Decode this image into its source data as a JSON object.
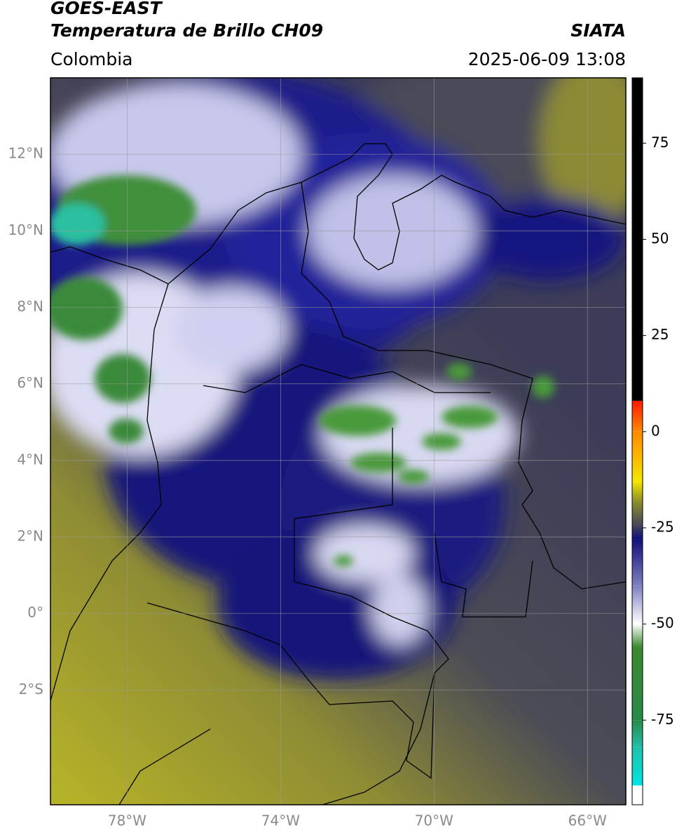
{
  "header": {
    "title": "GOES-EAST",
    "subtitle": "Temperatura de Brillo CH09",
    "source": "SIATA",
    "region": "Colombia",
    "datetime": "2025-06-09 13:08"
  },
  "map": {
    "xlim": [
      -80,
      -65
    ],
    "ylim": [
      -5,
      14
    ],
    "grid": true,
    "xticks": [
      {
        "value": -78,
        "label": "78°W"
      },
      {
        "value": -74,
        "label": "74°W"
      },
      {
        "value": -70,
        "label": "70°W"
      },
      {
        "value": -66,
        "label": "66°W"
      }
    ],
    "yticks": [
      {
        "value": 12,
        "label": "12°N"
      },
      {
        "value": 10,
        "label": "10°N"
      },
      {
        "value": 8,
        "label": "8°N"
      },
      {
        "value": 6,
        "label": "6°N"
      },
      {
        "value": 4,
        "label": "4°N"
      },
      {
        "value": 2,
        "label": "2°N"
      },
      {
        "value": 0,
        "label": "0°"
      },
      {
        "value": -2,
        "label": "2°S"
      }
    ]
  },
  "colorbar": {
    "lim": [
      -97,
      92
    ],
    "ticks": [
      75,
      50,
      25,
      0,
      -25,
      -50,
      -75
    ],
    "colormap": [
      {
        "value": 92,
        "color": "#000000"
      },
      {
        "value": 8,
        "color": "#000000"
      },
      {
        "value": 8,
        "color": "#ff1a00"
      },
      {
        "value": 0,
        "color": "#ff8a00"
      },
      {
        "value": -13,
        "color": "#f5e600"
      },
      {
        "value": -18,
        "color": "#8f8f2a"
      },
      {
        "value": -24,
        "color": "#4a4a55"
      },
      {
        "value": -28,
        "color": "#10107a"
      },
      {
        "value": -40,
        "color": "#7f7fc0"
      },
      {
        "value": -50,
        "color": "#ffffff"
      },
      {
        "value": -56,
        "color": "#3a8a2e"
      },
      {
        "value": -75,
        "color": "#2a8a4a"
      },
      {
        "value": -82,
        "color": "#20c0a8"
      },
      {
        "value": -92,
        "color": "#00e5e5"
      },
      {
        "value": -92,
        "color": "#ffffff"
      },
      {
        "value": -97,
        "color": "#ffffff"
      }
    ]
  }
}
